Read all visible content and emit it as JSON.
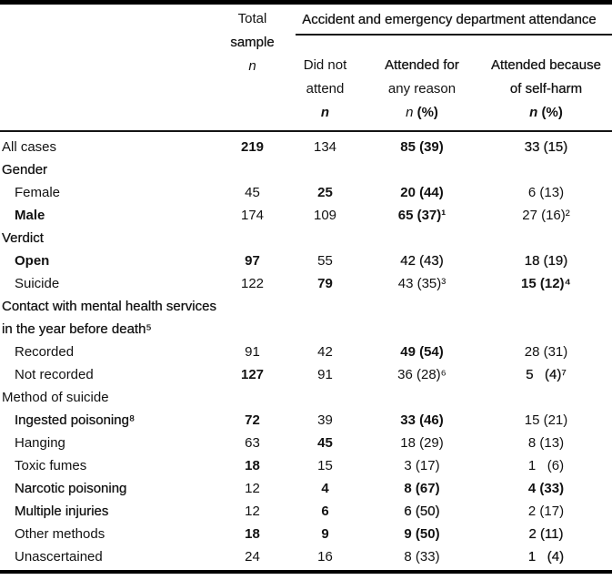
{
  "table": {
    "header": {
      "total": {
        "line1": "Total",
        "line2": "sample",
        "n": "n"
      },
      "attendance_spanner": "Accident and emergency department attendance",
      "did_not_attend": {
        "line1": "Did not",
        "line2": "attend",
        "n": "n"
      },
      "attended_any": {
        "line1": "Attended for",
        "line2": "any reason",
        "n": "n",
        "pct": "(%)"
      },
      "attended_self_harm": {
        "line1": "Attended because",
        "line2": "of self-harm",
        "n": "n",
        "pct": "(%)"
      }
    },
    "rows": [
      {
        "label": "All cases",
        "cells": [
          "219",
          "134",
          "85 (39)",
          "33 (15)"
        ]
      },
      {
        "label": "Gender",
        "cells": []
      },
      {
        "label": "Female",
        "cells": [
          "45",
          "25",
          "20 (44)",
          "6 (13)"
        ]
      },
      {
        "label": "Male",
        "cells": [
          "174",
          "109",
          "65 (37)¹",
          "27 (16)²"
        ]
      },
      {
        "label": "Verdict",
        "cells": []
      },
      {
        "label": "Open",
        "cells": [
          "97",
          "55",
          "42 (43)",
          "18 (19)"
        ]
      },
      {
        "label": "Suicide",
        "cells": [
          "122",
          "79",
          "43 (35)³",
          "15 (12)⁴"
        ]
      },
      {
        "label": "Contact with mental health services",
        "cells": []
      },
      {
        "label": "in the year before death⁵",
        "cells": []
      },
      {
        "label": "Recorded",
        "cells": [
          "91",
          "42",
          "49 (54)",
          "28 (31)"
        ]
      },
      {
        "label": "Not recorded",
        "cells": [
          "127",
          "91",
          "36 (28)⁶",
          "5   (4)⁷"
        ]
      },
      {
        "label": "Method of suicide",
        "cells": []
      },
      {
        "label": "Ingested poisoning⁸",
        "cells": [
          "72",
          "39",
          "33 (46)",
          "15 (21)"
        ]
      },
      {
        "label": "Hanging",
        "cells": [
          "63",
          "45",
          "18 (29)",
          "8 (13)"
        ]
      },
      {
        "label": "Toxic fumes",
        "cells": [
          "18",
          "15",
          "3 (17)",
          "1   (6)"
        ]
      },
      {
        "label": "Narcotic poisoning",
        "cells": [
          "12",
          "4",
          "8 (67)",
          "4 (33)"
        ]
      },
      {
        "label": "Multiple injuries",
        "cells": [
          "12",
          "6",
          "6 (50)",
          "2 (17)"
        ]
      },
      {
        "label": "Other methods",
        "cells": [
          "18",
          "9",
          "9 (50)",
          "2 (11)"
        ]
      },
      {
        "label": "Unascertained",
        "cells": [
          "24",
          "16",
          "8 (33)",
          "1   (4)"
        ]
      }
    ],
    "text_color": "#121212",
    "rule_color": "#000000"
  }
}
